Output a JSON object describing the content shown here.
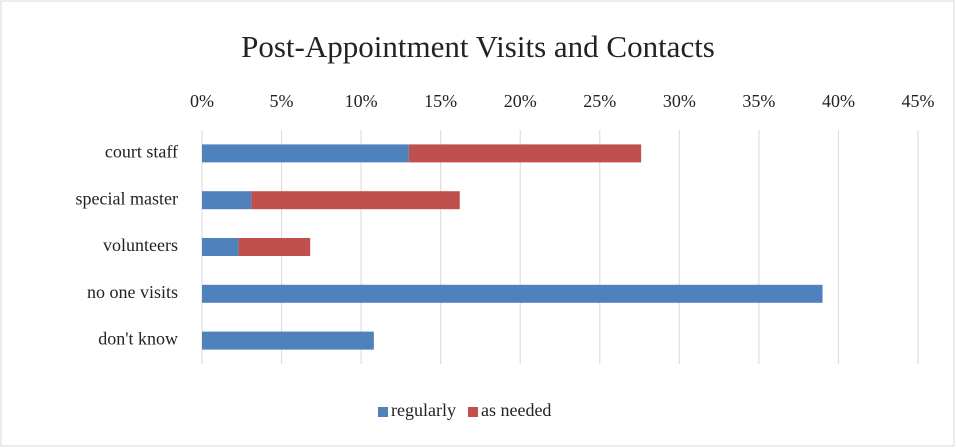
{
  "chart_data": {
    "type": "stacked-barh",
    "title": "Post-Appointment Visits and Contacts",
    "categories": [
      "court staff",
      "special master",
      "volunteers",
      "no one visits",
      "don't know"
    ],
    "series": [
      {
        "name": "regularly",
        "color": "#4f81bd",
        "values": [
          13.0,
          3.1,
          2.3,
          39.0,
          10.8
        ]
      },
      {
        "name": "as needed",
        "color": "#c0504d",
        "values": [
          14.6,
          13.1,
          4.5,
          null,
          null
        ]
      }
    ],
    "xlim": [
      0,
      45
    ],
    "xticks": [
      {
        "value": 0,
        "label": "0%"
      },
      {
        "value": 5,
        "label": "5%"
      },
      {
        "value": 10,
        "label": "10%"
      },
      {
        "value": 15,
        "label": "15%"
      },
      {
        "value": 20,
        "label": "20%"
      },
      {
        "value": 25,
        "label": "25%"
      },
      {
        "value": 30,
        "label": "30%"
      },
      {
        "value": 35,
        "label": "35%"
      },
      {
        "value": 40,
        "label": "40%"
      },
      {
        "value": 45,
        "label": "45%"
      }
    ],
    "grid": true,
    "legend": "bottom"
  }
}
